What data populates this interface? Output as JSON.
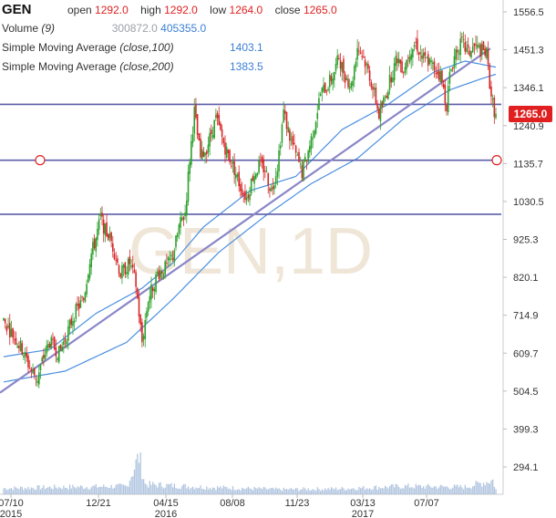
{
  "header": {
    "symbol": "GEN",
    "open_label": "open",
    "open_value": "1292.0",
    "high_label": "high",
    "high_value": "1292.0",
    "low_label": "low",
    "low_value": "1264.0",
    "close_label": "close",
    "close_value": "1265.0",
    "volume_label": "Volume",
    "volume_param": "(9)",
    "volume_value_1": "300872.0",
    "volume_value_2": "405355.0",
    "sma100_label": "Simple Moving Average",
    "sma100_param": "(close,100)",
    "sma100_value": "1403.1",
    "sma200_label": "Simple Moving Average",
    "sma200_param": "(close,200)",
    "sma200_value": "1383.5"
  },
  "watermark": "GEN,1D",
  "colors": {
    "up": "#2ca02c",
    "down": "#d62728",
    "sma": "#4a8fe0",
    "hline": "#5c5ea8",
    "trend": "#8a86c8",
    "volume": "#9db7d8",
    "last_price_bg": "#e02020"
  },
  "chart_data": {
    "type": "candlestick",
    "title": "GEN",
    "interval": "1D",
    "y_ticks": [
      1556.5,
      1451.3,
      1346.1,
      1240.9,
      1135.7,
      1030.5,
      925.3,
      820.1,
      714.9,
      609.7,
      504.5,
      399.3,
      294.1
    ],
    "x_ticks": [
      {
        "label": "07/10",
        "year": "2015"
      },
      {
        "label": "12/21",
        "year": ""
      },
      {
        "label": "04/15",
        "year": "2016"
      },
      {
        "label": "08/08",
        "year": ""
      },
      {
        "label": "11/23",
        "year": ""
      },
      {
        "label": "03/13",
        "year": "2017"
      },
      {
        "label": "07/07",
        "year": ""
      }
    ],
    "last_price": "1265.0",
    "horizontal_lines": [
      1300,
      1145,
      995
    ],
    "trend_line": {
      "from_price": 500,
      "to_price": 1455
    },
    "price_path": [
      [
        0,
        700
      ],
      [
        6,
        660
      ],
      [
        12,
        620
      ],
      [
        18,
        560
      ],
      [
        22,
        540
      ],
      [
        26,
        600
      ],
      [
        30,
        640
      ],
      [
        36,
        610
      ],
      [
        40,
        650
      ],
      [
        46,
        720
      ],
      [
        52,
        760
      ],
      [
        56,
        870
      ],
      [
        60,
        930
      ],
      [
        63,
        985
      ],
      [
        66,
        950
      ],
      [
        70,
        920
      ],
      [
        76,
        830
      ],
      [
        82,
        860
      ],
      [
        86,
        800
      ],
      [
        90,
        640
      ],
      [
        94,
        760
      ],
      [
        100,
        830
      ],
      [
        106,
        850
      ],
      [
        110,
        880
      ],
      [
        114,
        960
      ],
      [
        118,
        1000
      ],
      [
        121,
        1150
      ],
      [
        124,
        1280
      ],
      [
        128,
        1150
      ],
      [
        132,
        1180
      ],
      [
        138,
        1260
      ],
      [
        144,
        1180
      ],
      [
        150,
        1120
      ],
      [
        154,
        1070
      ],
      [
        158,
        1040
      ],
      [
        162,
        1100
      ],
      [
        166,
        1130
      ],
      [
        170,
        1120
      ],
      [
        174,
        1060
      ],
      [
        178,
        1130
      ],
      [
        182,
        1280
      ],
      [
        186,
        1210
      ],
      [
        190,
        1160
      ],
      [
        194,
        1110
      ],
      [
        198,
        1170
      ],
      [
        202,
        1240
      ],
      [
        206,
        1330
      ],
      [
        210,
        1350
      ],
      [
        214,
        1380
      ],
      [
        218,
        1430
      ],
      [
        222,
        1380
      ],
      [
        226,
        1350
      ],
      [
        230,
        1460
      ],
      [
        234,
        1430
      ],
      [
        238,
        1380
      ],
      [
        242,
        1310
      ],
      [
        244,
        1270
      ],
      [
        248,
        1320
      ],
      [
        252,
        1380
      ],
      [
        256,
        1430
      ],
      [
        260,
        1400
      ],
      [
        264,
        1450
      ],
      [
        268,
        1470
      ],
      [
        272,
        1430
      ],
      [
        276,
        1420
      ],
      [
        280,
        1400
      ],
      [
        284,
        1380
      ],
      [
        286,
        1340
      ],
      [
        288,
        1300
      ],
      [
        290,
        1380
      ],
      [
        294,
        1450
      ],
      [
        298,
        1470
      ],
      [
        302,
        1440
      ],
      [
        306,
        1460
      ],
      [
        310,
        1450
      ],
      [
        314,
        1440
      ],
      [
        316,
        1360
      ],
      [
        318,
        1300
      ],
      [
        320,
        1265
      ]
    ],
    "sma_100_path": [
      [
        0,
        600
      ],
      [
        30,
        620
      ],
      [
        60,
        720
      ],
      [
        90,
        790
      ],
      [
        110,
        860
      ],
      [
        130,
        960
      ],
      [
        160,
        1060
      ],
      [
        190,
        1100
      ],
      [
        220,
        1230
      ],
      [
        250,
        1300
      ],
      [
        280,
        1390
      ],
      [
        300,
        1420
      ],
      [
        320,
        1403.1
      ]
    ],
    "sma_200_path": [
      [
        0,
        530
      ],
      [
        40,
        560
      ],
      [
        80,
        640
      ],
      [
        110,
        760
      ],
      [
        140,
        890
      ],
      [
        170,
        990
      ],
      [
        200,
        1080
      ],
      [
        230,
        1150
      ],
      [
        260,
        1260
      ],
      [
        290,
        1340
      ],
      [
        310,
        1370
      ],
      [
        320,
        1383.5
      ]
    ],
    "volume_path": [
      [
        0,
        0.15
      ],
      [
        40,
        0.18
      ],
      [
        80,
        0.2
      ],
      [
        88,
        0.95
      ],
      [
        92,
        0.25
      ],
      [
        130,
        0.18
      ],
      [
        180,
        0.12
      ],
      [
        220,
        0.14
      ],
      [
        260,
        0.2
      ],
      [
        300,
        0.18
      ],
      [
        318,
        0.35
      ],
      [
        320,
        0.12
      ]
    ]
  }
}
